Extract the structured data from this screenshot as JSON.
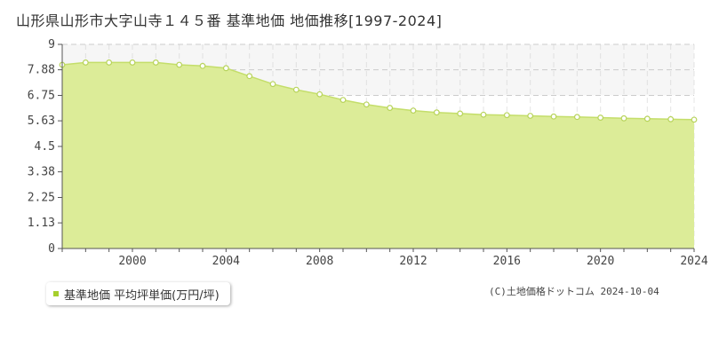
{
  "title": "山形県山形市大字山寺１４５番 基準地価 地価推移[1997-2024]",
  "credit": "(C)土地価格ドットコム 2024-10-04",
  "colors": {
    "fill": "#dcec98",
    "line": "#c4de6a",
    "marker_stroke": "#b7d35a",
    "marker_fill": "#ffffff",
    "grid": "#cccccc",
    "band": "#f6f6f6",
    "axis": "#555555",
    "legend_swatch": "#a6cf2d"
  },
  "chart_data": {
    "type": "area",
    "title": "山形県山形市大字山寺１４５番 基準地価 地価推移[1997-2024]",
    "xlabel": "",
    "ylabel": "",
    "x": [
      1997,
      1998,
      1999,
      2000,
      2001,
      2002,
      2003,
      2004,
      2005,
      2006,
      2007,
      2008,
      2009,
      2010,
      2011,
      2012,
      2013,
      2014,
      2015,
      2016,
      2017,
      2018,
      2019,
      2020,
      2021,
      2022,
      2023,
      2024
    ],
    "series": [
      {
        "name": "基準地価 平均坪単価(万円/坪)",
        "values": [
          8.1,
          8.2,
          8.2,
          8.2,
          8.2,
          8.1,
          8.05,
          7.95,
          7.6,
          7.25,
          7.0,
          6.8,
          6.55,
          6.35,
          6.2,
          6.08,
          6.0,
          5.95,
          5.9,
          5.88,
          5.85,
          5.82,
          5.8,
          5.77,
          5.74,
          5.72,
          5.7,
          5.68
        ]
      }
    ],
    "xlim": [
      1997,
      2024
    ],
    "ylim": [
      0,
      9
    ],
    "x_ticks": [
      "2000",
      "2004",
      "2008",
      "2012",
      "2016",
      "2020",
      "2024"
    ],
    "y_ticks": [
      "0",
      "1.13",
      "2.25",
      "3.38",
      "4.5",
      "5.63",
      "6.75",
      "7.88",
      "9"
    ],
    "grid": true,
    "legend_position": "bottom-left"
  }
}
